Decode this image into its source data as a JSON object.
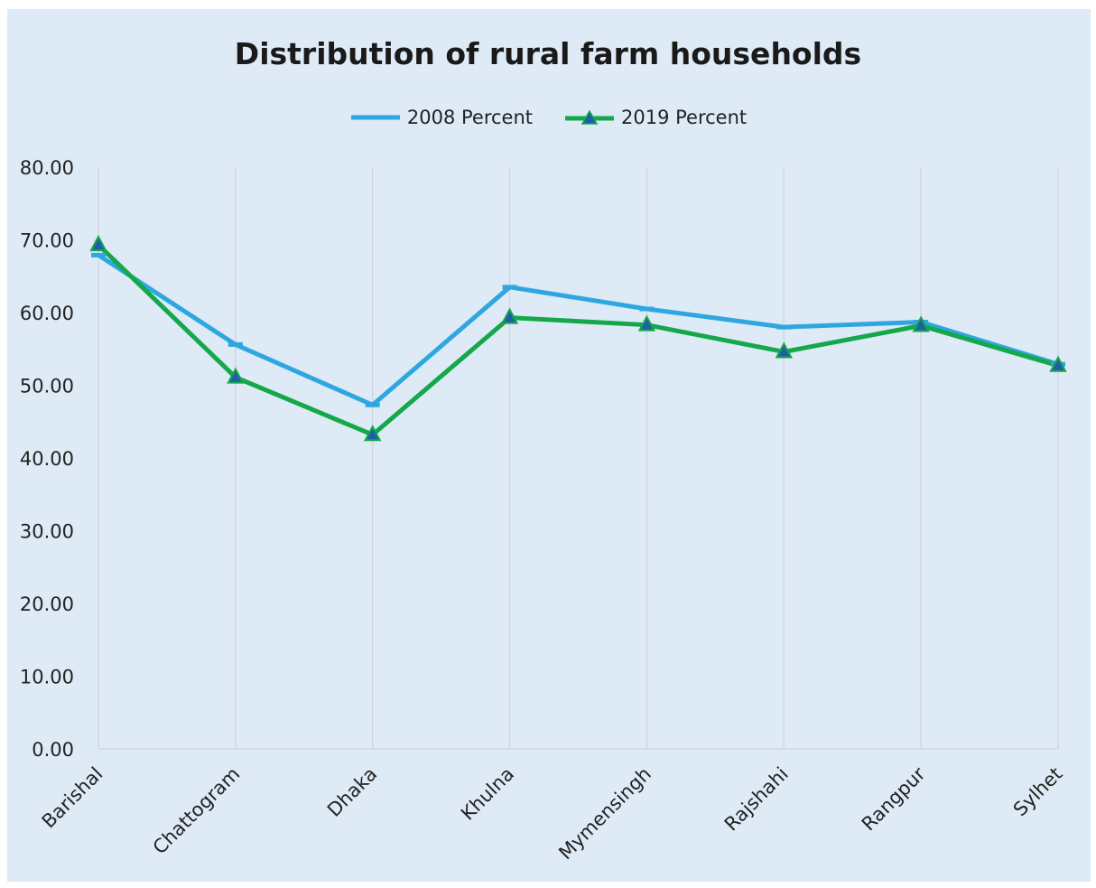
{
  "chart_data": {
    "type": "line",
    "title": "Distribution of rural farm households",
    "xlabel": "",
    "ylabel": "",
    "categories": [
      "Barishal",
      "Chattogram",
      "Dhaka",
      "Khulna",
      "Mymensingh",
      "Rajshahi",
      "Rangpur",
      "Sylhet"
    ],
    "series": [
      {
        "name": "2008 Percent",
        "values": [
          67.9,
          55.6,
          47.3,
          63.5,
          60.5,
          58.0,
          58.7,
          52.9
        ],
        "color": "#2ea7e0",
        "marker": "dash"
      },
      {
        "name": "2019 Percent",
        "values": [
          69.3,
          51.1,
          43.2,
          59.3,
          58.3,
          54.6,
          58.2,
          52.7
        ],
        "color": "#14a84a",
        "marker": "triangle"
      }
    ],
    "ylim": [
      0,
      80
    ],
    "yticks": [
      "0.00",
      "10.00",
      "20.00",
      "30.00",
      "40.00",
      "50.00",
      "60.00",
      "70.00",
      "80.00"
    ],
    "grid": "vertical",
    "legend": "top"
  }
}
